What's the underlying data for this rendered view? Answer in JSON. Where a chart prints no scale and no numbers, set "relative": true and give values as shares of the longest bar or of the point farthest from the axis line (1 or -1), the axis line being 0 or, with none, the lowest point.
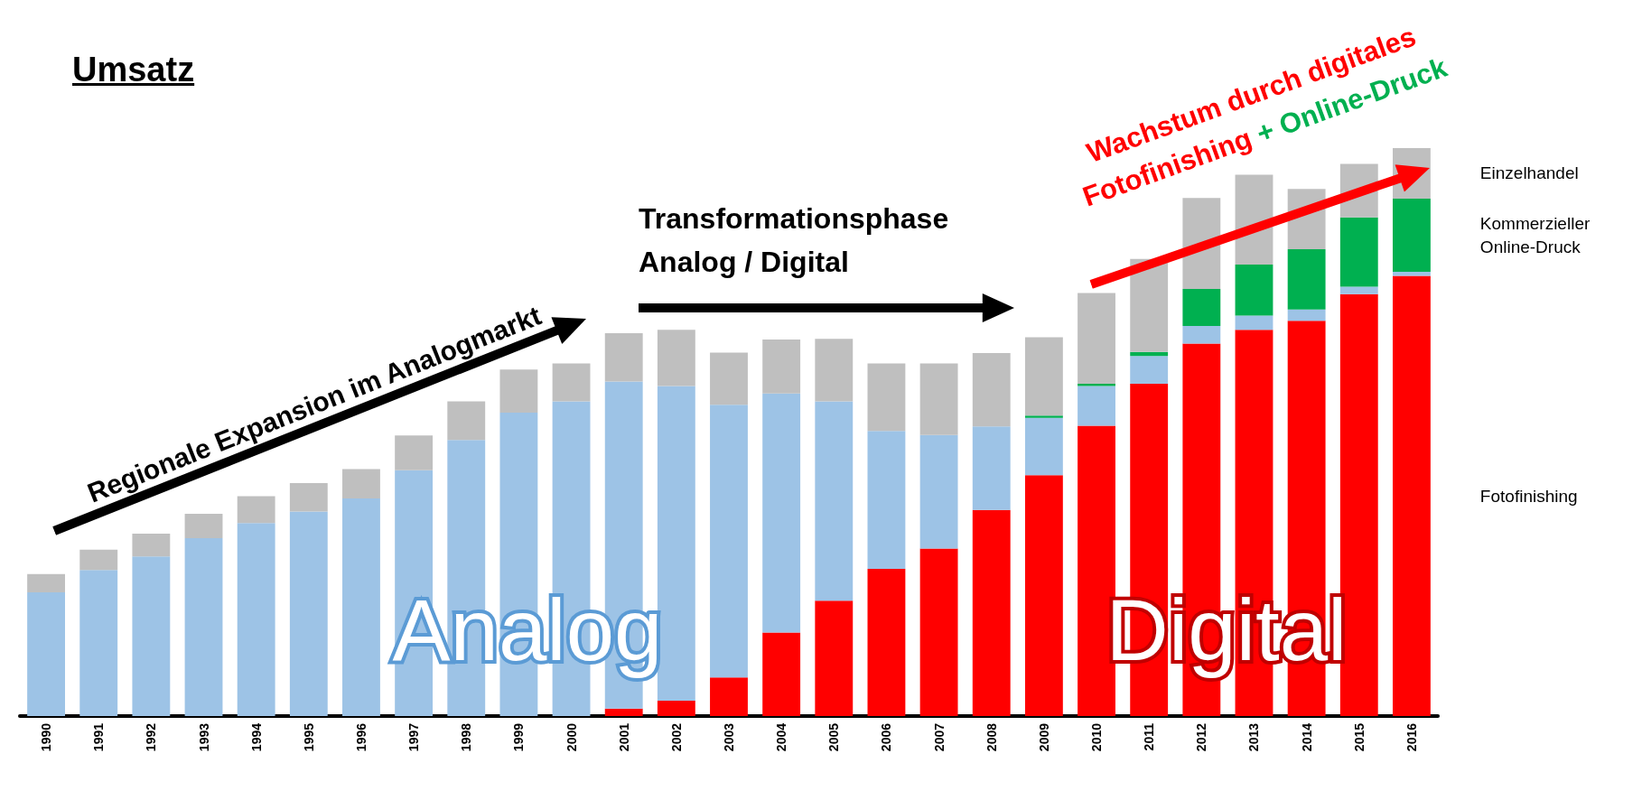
{
  "chart_data": {
    "type": "bar",
    "title": "Umsatz",
    "stacked": true,
    "relative": true,
    "legend": false,
    "categories": [
      "1990",
      "1991",
      "1992",
      "1993",
      "1994",
      "1995",
      "1996",
      "1997",
      "1998",
      "1999",
      "2000",
      "2001",
      "2002",
      "2003",
      "2004",
      "2005",
      "2006",
      "2007",
      "2008",
      "2009",
      "2010",
      "2011",
      "2012",
      "2013",
      "2014",
      "2015",
      "2016"
    ],
    "series": [
      {
        "name": "Fotofinishing",
        "color": "#ff0000",
        "values": [
          null,
          null,
          null,
          null,
          null,
          null,
          null,
          null,
          null,
          null,
          null,
          0.013,
          0.027,
          0.068,
          0.147,
          0.203,
          0.259,
          0.295,
          0.363,
          0.424,
          0.511,
          0.585,
          0.656,
          0.68,
          0.696,
          0.743,
          0.775
        ]
      },
      {
        "color": "#9dc3e6",
        "values": [
          0.218,
          0.257,
          0.281,
          0.313,
          0.34,
          0.36,
          0.383,
          0.433,
          0.486,
          0.534,
          0.554,
          0.576,
          0.554,
          0.48,
          0.421,
          0.351,
          0.243,
          0.2,
          0.147,
          0.101,
          0.07,
          0.049,
          0.031,
          0.025,
          0.02,
          0.013,
          0.007
        ]
      },
      {
        "name": "Kommerzieller Online-Druck",
        "color": "#00b050",
        "values": [
          null,
          null,
          null,
          null,
          null,
          null,
          null,
          null,
          null,
          null,
          null,
          null,
          null,
          null,
          null,
          null,
          null,
          null,
          null,
          0.004,
          0.004,
          0.007,
          0.065,
          0.09,
          0.106,
          0.122,
          0.129
        ]
      },
      {
        "name": "Einzelhandel",
        "color": "#bfbfbf",
        "values": [
          0.032,
          0.036,
          0.04,
          0.043,
          0.047,
          0.05,
          0.052,
          0.061,
          0.068,
          0.076,
          0.067,
          0.085,
          0.099,
          0.092,
          0.095,
          0.11,
          0.119,
          0.126,
          0.129,
          0.138,
          0.16,
          0.164,
          0.16,
          0.158,
          0.106,
          0.094,
          0.089
        ]
      }
    ],
    "annotations": [
      "Regionale Expansion im Analogmarkt",
      "Transformationsphase Analog / Digital",
      "Wachstum durch digitales",
      "Fotofinishing",
      "+ Online-Druck",
      "Analog",
      "Digital"
    ]
  }
}
